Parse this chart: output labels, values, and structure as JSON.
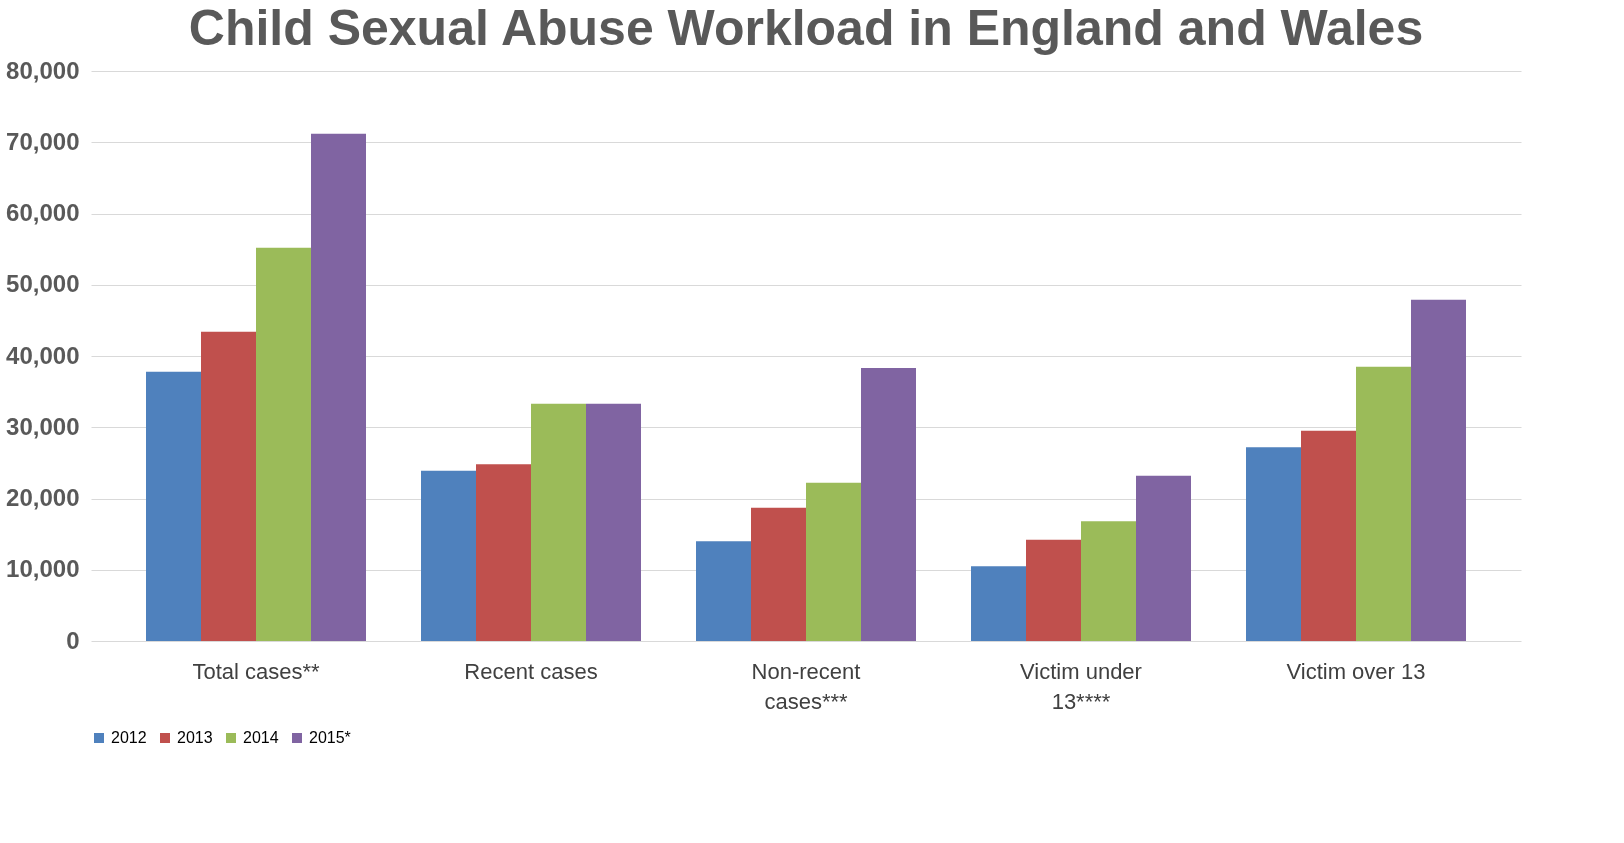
{
  "chart_data": {
    "type": "bar",
    "title": "Child Sexual Abuse Workload in England and Wales",
    "categories": [
      "Total cases**",
      "Recent cases",
      "Non-recent cases***",
      "Victim under 13****",
      "Victim over 13"
    ],
    "series": [
      {
        "name": "2012",
        "color": "#4f81bd",
        "values": [
          37800,
          23900,
          14000,
          10500,
          27200
        ]
      },
      {
        "name": "2013",
        "color": "#c0504d",
        "values": [
          43400,
          24800,
          18700,
          14200,
          29500
        ]
      },
      {
        "name": "2014",
        "color": "#9bbb59",
        "values": [
          55200,
          33300,
          22200,
          16800,
          38500
        ]
      },
      {
        "name": "2015*",
        "color": "#8064a2",
        "values": [
          71200,
          33300,
          38300,
          23200,
          47900
        ]
      }
    ],
    "ylim": [
      0,
      80000
    ],
    "yticks": [
      0,
      {
        "value": 10000,
        "label": "10,000"
      },
      {
        "value": 20000,
        "label": "20,000"
      },
      {
        "value": 30000,
        "label": "30,000"
      },
      {
        "value": 40000,
        "label": "40,000"
      },
      {
        "value": 50000,
        "label": "50,000"
      },
      {
        "value": 60000,
        "label": "60,000"
      },
      {
        "value": 70000,
        "label": "70,000"
      },
      {
        "value": 80000,
        "label": "80,000"
      }
    ],
    "grid": "y",
    "legend": "bottom"
  }
}
